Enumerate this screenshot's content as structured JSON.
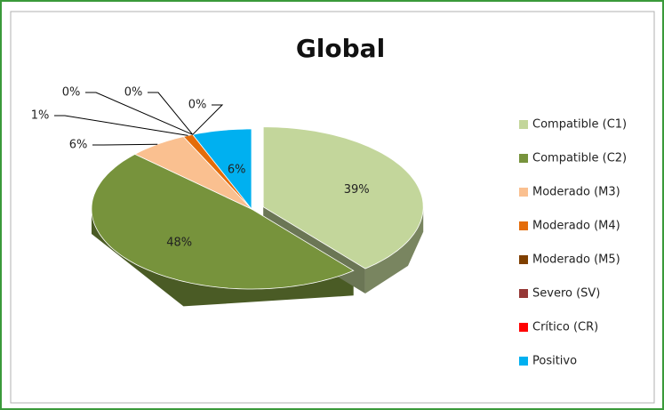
{
  "chart_data": {
    "type": "pie3d",
    "title": "Global",
    "categories": [
      "Compatible (C1)",
      "Compatible (C2)",
      "Moderado (M3)",
      "Moderado (M4)",
      "Moderado (M5)",
      "Severo (SV)",
      "Crítico (CR)",
      "Positivo"
    ],
    "values": [
      39,
      48,
      6,
      1,
      0,
      0,
      0,
      6
    ],
    "value_labels": [
      "39%",
      "48%",
      "6%",
      "1%",
      "0%",
      "0%",
      "0%",
      "6%"
    ],
    "colors": [
      "#c3d69b",
      "#77933c",
      "#fac090",
      "#e46c0a",
      "#7f3f00",
      "#953735",
      "#ff0000",
      "#00b0f0"
    ],
    "legend": "right"
  }
}
